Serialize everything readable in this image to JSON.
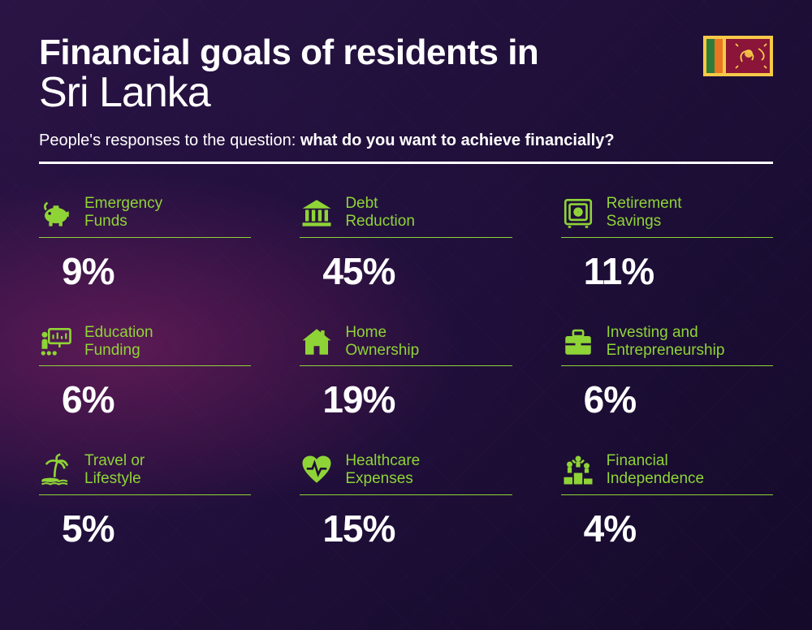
{
  "colors": {
    "accent": "#8fd436",
    "text": "#ffffff",
    "underline": "#8fd436"
  },
  "typography": {
    "title_bold_size": 44,
    "title_light_size": 52,
    "subtitle_size": 20,
    "label_size": 19,
    "pct_size": 46
  },
  "header": {
    "title_line1": "Financial goals of residents in",
    "title_line2": "Sri Lanka",
    "subtitle_prefix": "People's responses to the question: ",
    "subtitle_question": "what do you want to achieve financially?"
  },
  "flag": {
    "name": "sri-lanka-flag",
    "border_color": "#f7c948",
    "bg": "#8a1538",
    "green": "#2d7d3a",
    "orange": "#e87722",
    "lion": "#f7c948"
  },
  "items": [
    {
      "icon": "piggy-bank",
      "label_l1": "Emergency",
      "label_l2": "Funds",
      "value": "9%"
    },
    {
      "icon": "bank",
      "label_l1": "Debt",
      "label_l2": "Reduction",
      "value": "45%"
    },
    {
      "icon": "safe",
      "label_l1": "Retirement",
      "label_l2": "Savings",
      "value": "11%"
    },
    {
      "icon": "presentation",
      "label_l1": "Education",
      "label_l2": "Funding",
      "value": "6%"
    },
    {
      "icon": "house",
      "label_l1": "Home",
      "label_l2": "Ownership",
      "value": "19%"
    },
    {
      "icon": "briefcase",
      "label_l1": "Investing and",
      "label_l2": "Entrepreneurship",
      "value": "6%"
    },
    {
      "icon": "palm",
      "label_l1": "Travel or",
      "label_l2": "Lifestyle",
      "value": "5%"
    },
    {
      "icon": "heart",
      "label_l1": "Healthcare",
      "label_l2": "Expenses",
      "value": "15%"
    },
    {
      "icon": "podium",
      "label_l1": "Financial",
      "label_l2": "Independence",
      "value": "4%"
    }
  ]
}
